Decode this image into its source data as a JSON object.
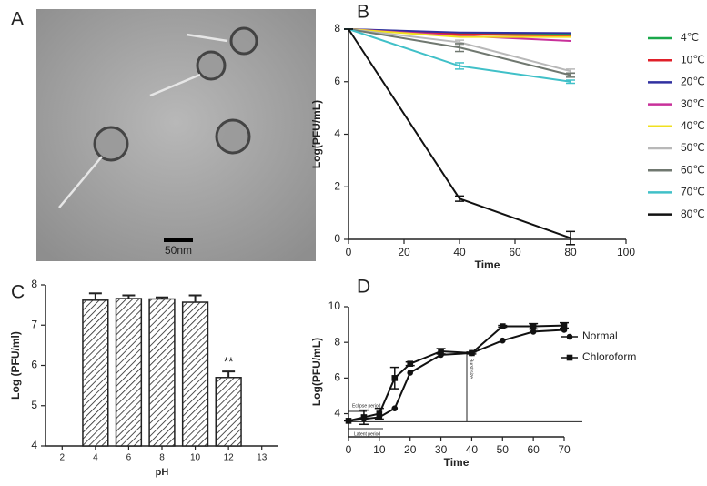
{
  "chart_data": [
    {
      "type": "image",
      "panel": "A",
      "scale_label": "50nm"
    },
    {
      "type": "line",
      "panel": "B",
      "xlabel": "Time",
      "ylabel": "Log(PFU/mL)",
      "x": [
        0,
        40,
        80
      ],
      "xlim": [
        0,
        100
      ],
      "xticks": [
        0,
        20,
        40,
        60,
        80,
        100
      ],
      "ylim": [
        0,
        8
      ],
      "yticks": [
        0,
        2,
        4,
        6,
        8
      ],
      "series": [
        {
          "name": "4℃",
          "color": "#1aa84a",
          "values": [
            8,
            7.85,
            7.8
          ]
        },
        {
          "name": "10℃",
          "color": "#e0202a",
          "values": [
            8,
            7.8,
            7.75
          ]
        },
        {
          "name": "20℃",
          "color": "#3030a0",
          "values": [
            8,
            7.87,
            7.85
          ]
        },
        {
          "name": "30℃",
          "color": "#c8309a",
          "values": [
            8,
            7.75,
            7.55
          ]
        },
        {
          "name": "40℃",
          "color": "#f0e020",
          "values": [
            8,
            7.7,
            7.7
          ]
        },
        {
          "name": "50℃",
          "color": "#b8b8b8",
          "values": [
            8,
            7.5,
            6.4
          ],
          "errors": [
            0,
            0.08,
            0.08
          ]
        },
        {
          "name": "60℃",
          "color": "#707870",
          "values": [
            8,
            7.3,
            6.25
          ],
          "errors": [
            0,
            0.15,
            0.08
          ]
        },
        {
          "name": "70℃",
          "color": "#40c0c8",
          "values": [
            8,
            6.6,
            6.0
          ],
          "errors": [
            0,
            0.12,
            0.06
          ]
        },
        {
          "name": "80℃",
          "color": "#111111",
          "values": [
            8,
            1.55,
            0.05
          ],
          "errors": [
            0,
            0.1,
            0.25
          ]
        }
      ]
    },
    {
      "type": "bar",
      "panel": "C",
      "xlabel": "pH",
      "ylabel": "Log (PFU/ml)",
      "categories": [
        "2",
        "4",
        "6",
        "8",
        "10",
        "12",
        "13"
      ],
      "values": [
        null,
        7.62,
        7.66,
        7.65,
        7.57,
        5.7,
        null
      ],
      "errors": [
        null,
        0.17,
        0.08,
        0.04,
        0.17,
        0.15,
        null
      ],
      "significance": [
        null,
        null,
        null,
        null,
        null,
        "**",
        null
      ],
      "color": "#222222",
      "ylim": [
        4,
        8
      ],
      "yticks": [
        4,
        5,
        6,
        7,
        8
      ]
    },
    {
      "type": "line",
      "panel": "D",
      "xlabel": "Time",
      "ylabel": "Log(PFU/mL)",
      "x": [
        0,
        5,
        10,
        15,
        20,
        30,
        40,
        50,
        60,
        70
      ],
      "xlim": [
        0,
        70
      ],
      "xticks": [
        0,
        10,
        20,
        30,
        40,
        50,
        60,
        70
      ],
      "ylim": [
        2.7,
        10
      ],
      "yticks": [
        4,
        6,
        8,
        10
      ],
      "reference_line": 3.55,
      "annotations": [
        "Eclipse period",
        "Latent period",
        "Burst size"
      ],
      "series": [
        {
          "name": "Normal",
          "color": "#111111",
          "marker": "circle",
          "values": [
            3.6,
            3.7,
            3.8,
            4.3,
            6.3,
            7.3,
            7.4,
            8.1,
            8.6,
            8.7
          ]
        },
        {
          "name": "Chloroform",
          "color": "#111111",
          "marker": "square",
          "values": [
            3.6,
            3.8,
            4.0,
            6.0,
            6.8,
            7.5,
            7.4,
            8.9,
            8.9,
            8.95
          ],
          "errors": [
            0,
            0.4,
            0.3,
            0.6,
            0.1,
            0.15,
            0.05,
            0.05,
            0.15,
            0.15
          ]
        }
      ]
    }
  ]
}
